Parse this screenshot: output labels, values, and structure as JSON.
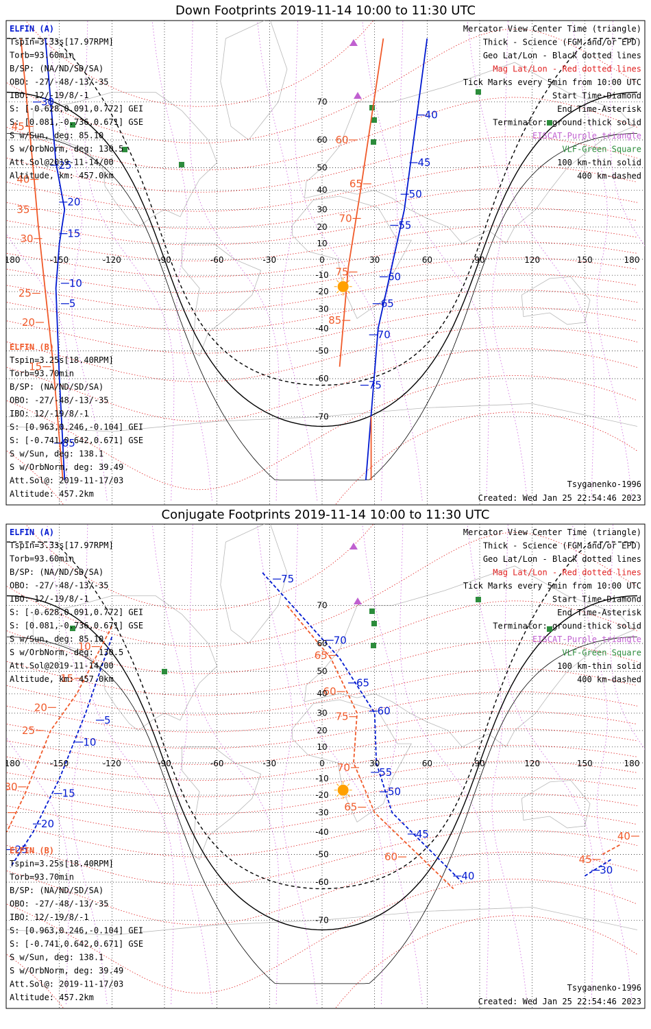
{
  "colors": {
    "elfin_a": "#0018d0",
    "elfin_b": "#f05a2a",
    "mag_grid": "#e02020",
    "geo_grid": "#000000",
    "meridian_dots": "#d070e0",
    "coast": "#b8b8b8",
    "eiscat": "#c060d0",
    "vlf": "#2c8c3c",
    "sun": "#ffa000"
  },
  "axes": {
    "lon_ticks": [
      "180",
      "-150",
      "-120",
      "-90",
      "-60",
      "-30",
      "0",
      "30",
      "60",
      "90",
      "120",
      "150",
      "180"
    ],
    "lat_ticks": [
      "70",
      "60",
      "50",
      "40",
      "30",
      "20",
      "10",
      "-10",
      "-20",
      "-30",
      "-40",
      "-50",
      "-60",
      "-70"
    ]
  },
  "panels": [
    {
      "title": "Down Footprints 2019-11-14 10:00 to 11:30 UTC",
      "sat_a": {
        "name": "ELFIN (A)",
        "lines": [
          "Tspin=3.33s[17.97RPM]",
          "Torb=93.60min",
          "B/SP: (NA/ND/SD/SA)",
          "OBO: -27/-48/-13/-35",
          "IBO: 12/-19/8/-1",
          "S: [-0.628,0.091,0.772] GEI",
          "S: [0.081,-0.736,0.671] GSE",
          "S w/Sun, deg: 85.10",
          "S w/OrbNorm, deg: 130.5",
          "Att.Sol@2019-11-14/00",
          "Altitude, km: 457.0km"
        ]
      },
      "sat_b": {
        "name": "ELFIN (B)",
        "lines": [
          "Tspin=3.25s[18.40RPM]",
          "Torb=93.70min",
          "B/SP: (NA/ND/SD/SA)",
          "OBO: -27/-48/-13/-35",
          "IBO: 12/-19/8/-1",
          "S: [0.963,0.246,-0.104] GEI",
          "S: [-0.741,0.642,0.671] GSE",
          "S w/Sun, deg: 138.1",
          "S w/OrbNorm, deg: 39.49",
          "Att.Sol@: 2019-11-17/03",
          "Altitude: 457.2km"
        ]
      },
      "legend": [
        "Mercator View Center Time (triangle)",
        "Thick - Science (FGM and/or EPD)",
        "Geo Lat/Lon - Black dotted lines",
        "Mag Lat/Lon - Red dotted lines",
        "Tick Marks every 5min from 10:00 UTC",
        "Start Time-Diamond",
        "End Time-Asterisk",
        "Terminator: ground-thick solid",
        "EISCAT-Purple triangle",
        "VLF-Green Square",
        "100 km-thin solid",
        "400 km-dashed"
      ],
      "model": "Tsyganenko-1996",
      "created": "Created: Wed Jan 25 22:54:46 2023",
      "track_a_labels": [
        {
          "t": "40",
          "lon": 57,
          "lat": 67
        },
        {
          "t": "45",
          "lon": 53,
          "lat": 52
        },
        {
          "t": "50",
          "lon": 48,
          "lat": 38
        },
        {
          "t": "55",
          "lon": 42,
          "lat": 21
        },
        {
          "t": "60",
          "lon": 36,
          "lat": -11
        },
        {
          "t": "65",
          "lon": 32,
          "lat": -27
        },
        {
          "t": "70",
          "lon": 30,
          "lat": -43
        },
        {
          "t": "75",
          "lon": 25,
          "lat": -62
        },
        {
          "t": "5",
          "lon": -146,
          "lat": -27
        },
        {
          "t": "10",
          "lon": -146,
          "lat": -15
        },
        {
          "t": "15",
          "lon": -147,
          "lat": 16
        },
        {
          "t": "20",
          "lon": -147,
          "lat": 34
        },
        {
          "t": "25",
          "lon": -152,
          "lat": 51
        },
        {
          "t": "30",
          "lon": -162,
          "lat": 70
        },
        {
          "t": "85",
          "lon": -150,
          "lat": -75
        }
      ],
      "track_b_labels": [
        {
          "t": "60",
          "lon": 17,
          "lat": 60
        },
        {
          "t": "65",
          "lon": 25,
          "lat": 43
        },
        {
          "t": "70",
          "lon": 19,
          "lat": 25
        },
        {
          "t": "75",
          "lon": 17,
          "lat": -8
        },
        {
          "t": "85",
          "lon": 13,
          "lat": -36
        },
        {
          "t": "15",
          "lon": -158,
          "lat": -56
        },
        {
          "t": "20",
          "lon": -162,
          "lat": -37
        },
        {
          "t": "25",
          "lon": -164,
          "lat": -21
        },
        {
          "t": "30",
          "lon": -163,
          "lat": 13
        },
        {
          "t": "35",
          "lon": -165,
          "lat": 30
        },
        {
          "t": "40",
          "lon": -165,
          "lat": 45
        },
        {
          "t": "45",
          "lon": -168,
          "lat": 64
        }
      ]
    },
    {
      "title": "Conjugate Footprints 2019-11-14 10:00 to 11:30 UTC",
      "sat_a": {
        "name": "ELFIN (A)",
        "lines": [
          "Tspin=3.33s[17.97RPM]",
          "Torb=93.60min",
          "B/SP: (NA/ND/SD/SA)",
          "OBO: -27/-48/-13/-35",
          "IBO: 12/-19/8/-1",
          "S: [-0.628,0.091,0.772] GEI",
          "S: [0.081,-0.736,0.671] GSE",
          "S w/Sun, deg: 85.10",
          "S w/OrbNorm, deg: 130.5",
          "Att.Sol@2019-11-14/00",
          "Altitude, km: 457.0km"
        ]
      },
      "sat_b": {
        "name": "ELFIN (B)",
        "lines": [
          "Tspin=3.25s[18.40RPM]",
          "Torb=93.70min",
          "B/SP: (NA/ND/SD/SA)",
          "OBO: -27/-48/-13/-35",
          "IBO: 12/-19/8/-1",
          "S: [0.963,0.246,-0.104] GEI",
          "S: [-0.741,0.642,0.671] GSE",
          "S w/Sun, deg: 138.1",
          "S w/OrbNorm, deg: 39.49",
          "Att.Sol@: 2019-11-17/03",
          "Altitude: 457.2km"
        ]
      },
      "legend": [
        "Mercator View Center Time (triangle)",
        "Thick - Science (FGM and/or EPD)",
        "Geo Lat/Lon - Black dotted lines",
        "Mag Lat/Lon - Red dotted lines",
        "Tick Marks every 5min from 10:00 UTC",
        "Start Time-Diamond",
        "End Time-Asterisk",
        "Terminator: ground-thick solid",
        "EISCAT-Purple triangle",
        "VLF-Green Square",
        "100 km-thin solid",
        "400 km-dashed"
      ],
      "model": "Tsyganenko-1996",
      "created": "Created: Wed Jan 25 22:54:46 2023",
      "track_a_labels": [
        {
          "t": "75",
          "lon": -25,
          "lat": 75
        },
        {
          "t": "70",
          "lon": 5,
          "lat": 61
        },
        {
          "t": "65",
          "lon": 18,
          "lat": 45
        },
        {
          "t": "60",
          "lon": 30,
          "lat": 31
        },
        {
          "t": "55",
          "lon": 31,
          "lat": -6
        },
        {
          "t": "50",
          "lon": 36,
          "lat": -18
        },
        {
          "t": "45",
          "lon": 52,
          "lat": -41
        },
        {
          "t": "40",
          "lon": 78,
          "lat": -58
        },
        {
          "t": "5",
          "lon": -126,
          "lat": 26
        },
        {
          "t": "10",
          "lon": -138,
          "lat": 13
        },
        {
          "t": "15",
          "lon": -150,
          "lat": -19
        },
        {
          "t": "20",
          "lon": -162,
          "lat": -36
        },
        {
          "t": "25",
          "lon": -177,
          "lat": -48
        },
        {
          "t": "30",
          "lon": 157,
          "lat": -56
        }
      ],
      "track_b_labels": [
        {
          "t": "65",
          "lon": 5,
          "lat": 56
        },
        {
          "t": "60",
          "lon": 10,
          "lat": 41
        },
        {
          "t": "75",
          "lon": 17,
          "lat": 28
        },
        {
          "t": "70",
          "lon": 18,
          "lat": -3
        },
        {
          "t": "65",
          "lon": 22,
          "lat": -27
        },
        {
          "t": "60",
          "lon": 45,
          "lat": -51
        },
        {
          "t": "10",
          "lon": -130,
          "lat": 59
        },
        {
          "t": "15",
          "lon": -140,
          "lat": 47
        },
        {
          "t": "20",
          "lon": -155,
          "lat": 33
        },
        {
          "t": "25",
          "lon": -162,
          "lat": 20
        },
        {
          "t": "30",
          "lon": -172,
          "lat": -15
        },
        {
          "t": "35",
          "lon": -178,
          "lat": -30
        },
        {
          "t": "40",
          "lon": 178,
          "lat": -42
        },
        {
          "t": "45",
          "lon": 156,
          "lat": -52
        }
      ]
    }
  ]
}
